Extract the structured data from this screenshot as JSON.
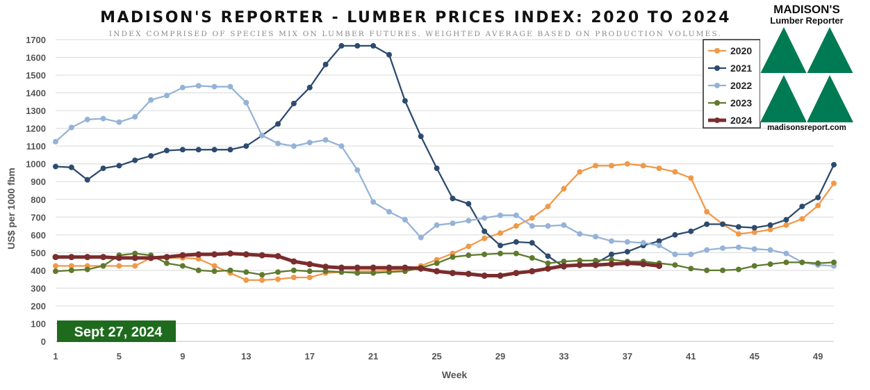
{
  "chart_data": {
    "type": "line",
    "title": "MADISON'S REPORTER - LUMBER PRICES INDEX: 2020 TO 2024",
    "subtitle": "INDEX COMPRISED OF SPECIES MIX ON LUMBER FUTURES. WEIGHTED AVERAGE BASED ON PRODUCTION VOLUMES.",
    "xlabel": "Week",
    "ylabel": "US$ per 1000 fbm",
    "xlim": [
      1,
      50
    ],
    "ylim": [
      0,
      1700
    ],
    "x_ticks": [
      "1",
      "5",
      "9",
      "13",
      "17",
      "21",
      "25",
      "29",
      "33",
      "37",
      "41",
      "45",
      "49"
    ],
    "y_ticks": [
      "0",
      "100",
      "200",
      "300",
      "400",
      "500",
      "600",
      "700",
      "800",
      "900",
      "1000",
      "1100",
      "1200",
      "1300",
      "1400",
      "1500",
      "1600",
      "1700"
    ],
    "grid": "horizontal",
    "legend_position": "top-right",
    "series": [
      {
        "name": "2020",
        "color": "#F0994A",
        "values": [
          425,
          425,
          425,
          425,
          425,
          425,
          470,
          470,
          470,
          465,
          425,
          385,
          345,
          345,
          350,
          360,
          360,
          385,
          390,
          395,
          395,
          400,
          405,
          425,
          460,
          495,
          535,
          580,
          610,
          650,
          695,
          760,
          860,
          955,
          990,
          990,
          1000,
          990,
          975,
          955,
          920,
          730,
          660,
          605,
          615,
          630,
          655,
          690,
          765,
          890
        ]
      },
      {
        "name": "2021",
        "color": "#2D4B6E",
        "values": [
          985,
          980,
          910,
          975,
          990,
          1020,
          1045,
          1075,
          1080,
          1080,
          1080,
          1080,
          1100,
          1160,
          1225,
          1340,
          1430,
          1560,
          1665,
          1665,
          1665,
          1615,
          1355,
          1155,
          975,
          805,
          775,
          620,
          540,
          560,
          555,
          480,
          420,
          430,
          440,
          490,
          505,
          540,
          565,
          600,
          620,
          660,
          660,
          645,
          640,
          655,
          685,
          760,
          810,
          995
        ]
      },
      {
        "name": "2022",
        "color": "#95B3D7",
        "values": [
          1125,
          1205,
          1250,
          1255,
          1235,
          1265,
          1360,
          1385,
          1430,
          1440,
          1435,
          1435,
          1345,
          1160,
          1115,
          1100,
          1120,
          1135,
          1100,
          965,
          785,
          730,
          685,
          585,
          655,
          665,
          680,
          695,
          710,
          710,
          650,
          650,
          655,
          605,
          590,
          565,
          560,
          555,
          540,
          490,
          490,
          515,
          525,
          530,
          520,
          515,
          495,
          445,
          430,
          425
        ]
      },
      {
        "name": "2023",
        "color": "#5F7A2E",
        "values": [
          395,
          400,
          405,
          425,
          485,
          495,
          485,
          440,
          425,
          400,
          395,
          400,
          390,
          375,
          390,
          400,
          395,
          395,
          390,
          385,
          385,
          390,
          395,
          415,
          440,
          475,
          485,
          490,
          495,
          495,
          470,
          440,
          450,
          455,
          455,
          460,
          450,
          450,
          440,
          430,
          410,
          400,
          400,
          405,
          425,
          435,
          445,
          445,
          440,
          445
        ]
      },
      {
        "name": "2024",
        "color": "#7B2C2C",
        "values": [
          475,
          475,
          475,
          475,
          470,
          470,
          470,
          475,
          485,
          490,
          490,
          495,
          490,
          485,
          480,
          450,
          435,
          420,
          415,
          415,
          415,
          415,
          415,
          410,
          395,
          385,
          380,
          370,
          370,
          385,
          395,
          410,
          425,
          430,
          430,
          435,
          440,
          435,
          425
        ]
      }
    ],
    "annotation": "Sept 27, 2024"
  },
  "logo": {
    "name_top": "MADISON'S",
    "name_sub": "Lumber Reporter",
    "url": "madisonsreport.com",
    "brand_color": "#007A53"
  },
  "colors": {
    "grid": "#D9D9D9",
    "badge": "#1E6B1E"
  }
}
